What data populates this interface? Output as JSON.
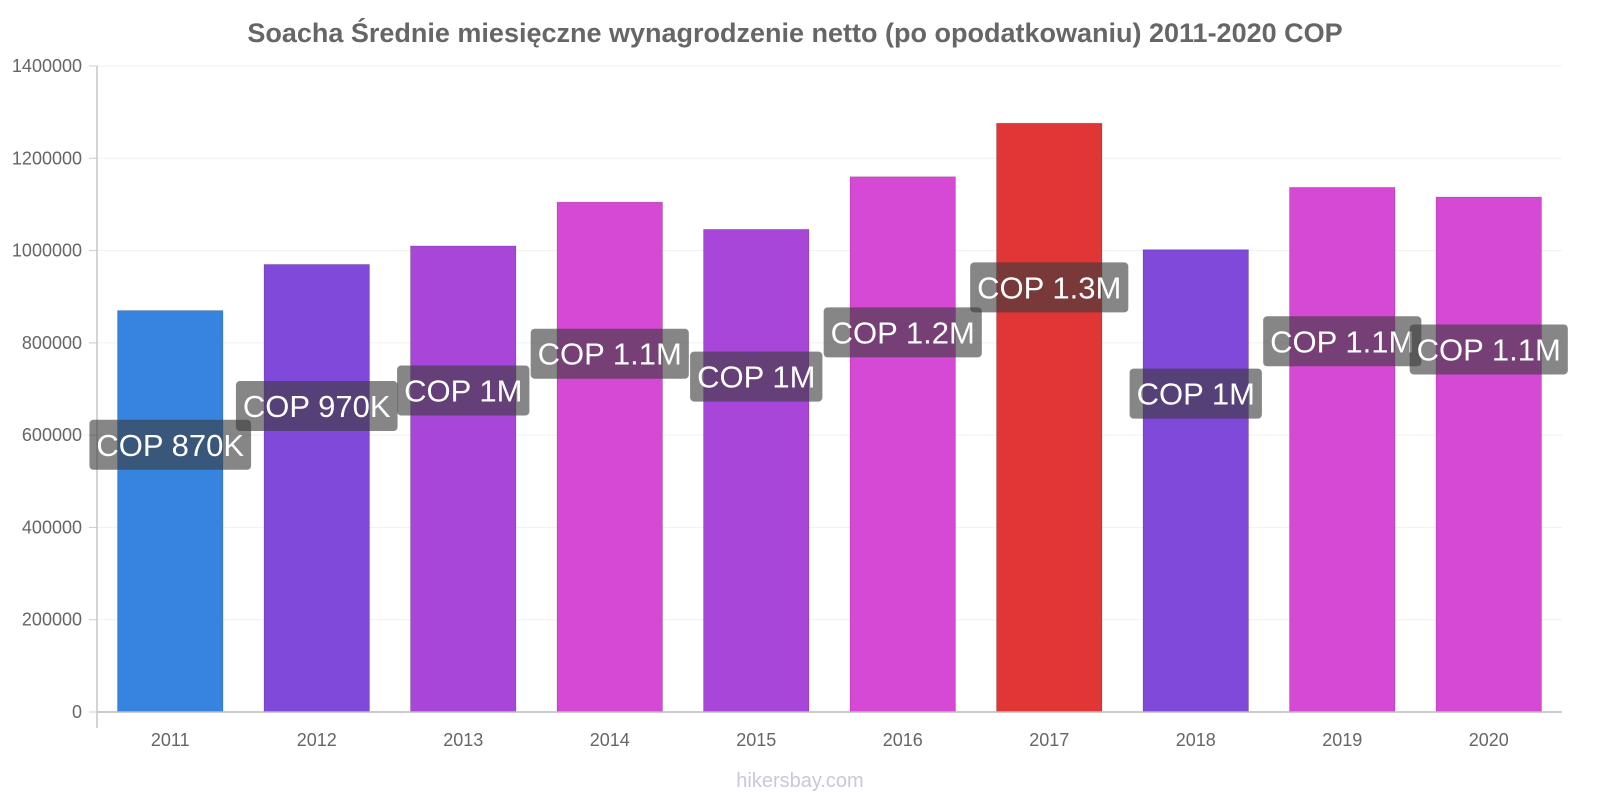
{
  "chart_data": {
    "type": "bar",
    "title": "Soacha Średnie miesięczne wynagrodzenie netto (po opodatkowaniu) 2011-2020 COP",
    "xlabel": "",
    "ylabel": "",
    "categories": [
      "2011",
      "2012",
      "2013",
      "2014",
      "2015",
      "2016",
      "2017",
      "2018",
      "2019",
      "2020"
    ],
    "values": [
      870000,
      970000,
      1010000,
      1105000,
      1046000,
      1160000,
      1276000,
      1002000,
      1137000,
      1116000
    ],
    "data_labels": [
      "COP 870K",
      "COP 970K",
      "COP 1M",
      "COP 1.1M",
      "COP 1M",
      "COP 1.2M",
      "COP 1.3M",
      "COP 1M",
      "COP 1.1M",
      "COP 1.1M"
    ],
    "colors": [
      "#3683e0",
      "#8149d9",
      "#a746d9",
      "#d649d4",
      "#a746d9",
      "#d649d4",
      "#e03636",
      "#8149d9",
      "#d649d4",
      "#d649d4"
    ],
    "ylim": [
      0,
      1400000
    ],
    "yticks": [
      "0",
      "200000",
      "400000",
      "600000",
      "800000",
      "1000000",
      "1200000",
      "1400000"
    ],
    "grid": true,
    "legend": "none"
  },
  "footer": {
    "watermark": "hikersbay.com"
  }
}
